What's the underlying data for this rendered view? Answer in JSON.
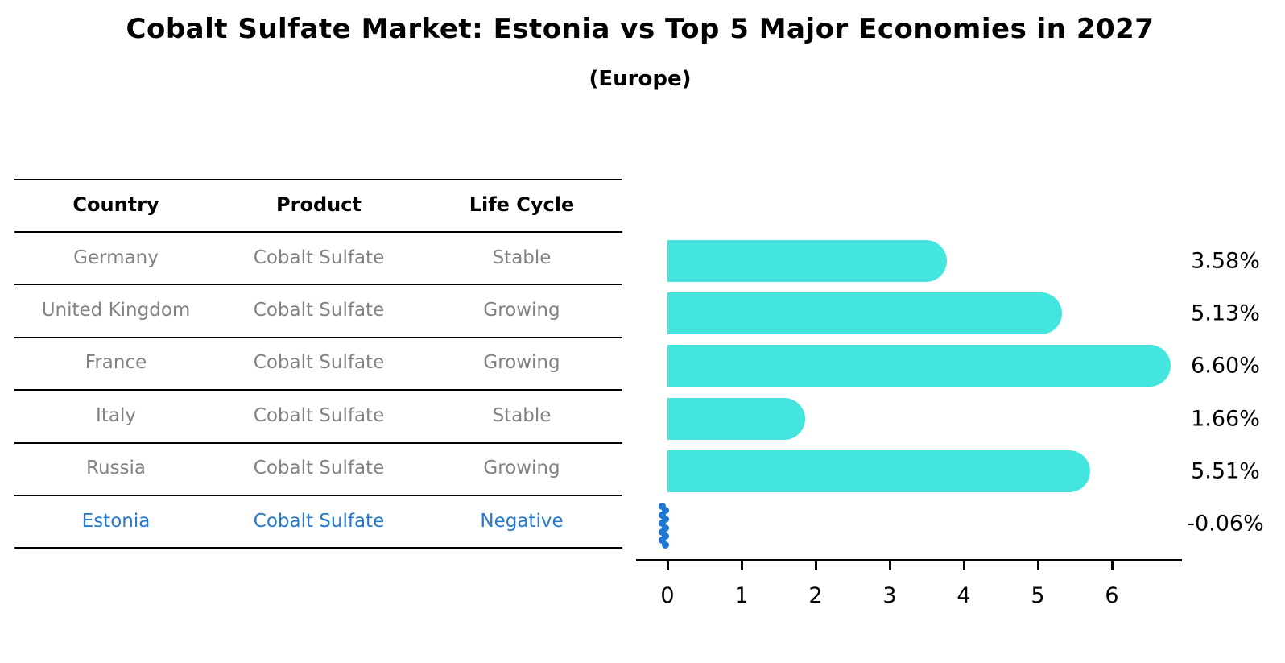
{
  "title": "Cobalt Sulfate Market: Estonia vs Top 5 Major Economies in 2027",
  "subtitle": "(Europe)",
  "table": {
    "headers": [
      "Country",
      "Product",
      "Life Cycle"
    ],
    "rows": [
      {
        "country": "Germany",
        "product": "Cobalt Sulfate",
        "life_cycle": "Stable",
        "highlight": false
      },
      {
        "country": "United Kingdom",
        "product": "Cobalt Sulfate",
        "life_cycle": "Growing",
        "highlight": false
      },
      {
        "country": "France",
        "product": "Cobalt Sulfate",
        "life_cycle": "Growing",
        "highlight": false
      },
      {
        "country": "Italy",
        "product": "Cobalt Sulfate",
        "life_cycle": "Stable",
        "highlight": false
      },
      {
        "country": "Russia",
        "product": "Cobalt Sulfate",
        "life_cycle": "Growing",
        "highlight": false
      },
      {
        "country": "Estonia",
        "product": "Cobalt Sulfate",
        "life_cycle": "Negative",
        "highlight": true
      }
    ]
  },
  "chart_data": {
    "type": "bar",
    "orientation": "horizontal",
    "title": "Cobalt Sulfate Market: Estonia vs Top 5 Major Economies in 2027 (Europe)",
    "categories": [
      "Germany",
      "United Kingdom",
      "France",
      "Italy",
      "Russia",
      "Estonia"
    ],
    "values": [
      3.58,
      5.13,
      6.6,
      1.66,
      5.51,
      -0.06
    ],
    "value_labels": [
      "3.58%",
      "5.13%",
      "6.60%",
      "1.66%",
      "5.51%",
      "-0.06%"
    ],
    "xlabel": "",
    "ylabel": "",
    "xlim": [
      0,
      6.95
    ],
    "xticks": [
      0,
      1,
      2,
      3,
      4,
      5,
      6
    ],
    "grid": false,
    "legend": false,
    "bar_color": "#44E5DF",
    "highlight_marker_color": "#1F77D4"
  },
  "colors": {
    "background": "#FFFFFF",
    "title_text": "#000000",
    "table_header_text": "#000000",
    "table_body_text": "#828282",
    "highlight_text": "#2878C8",
    "table_line": "#000000",
    "axis": "#000000",
    "tick_label_text": "#000000",
    "value_label_text": "#000000"
  }
}
